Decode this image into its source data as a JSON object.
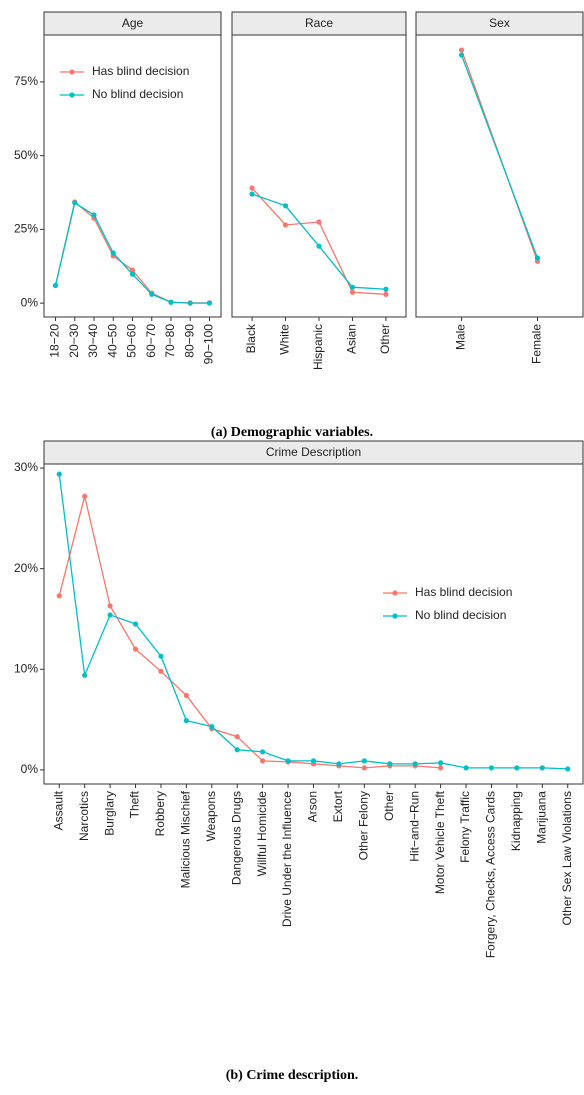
{
  "chart_data": [
    {
      "type": "line",
      "caption": "(a) Demographic variables.",
      "series": [
        {
          "name": "Has blind decision",
          "color": "#F8766D"
        },
        {
          "name": "No blind decision",
          "color": "#00BFC4"
        }
      ],
      "ylim": [
        -4.7,
        90.9
      ],
      "yticks": [
        {
          "value": 0,
          "label": "0%"
        },
        {
          "value": 25,
          "label": "25%"
        },
        {
          "value": 50,
          "label": "50%"
        },
        {
          "value": 75,
          "label": "75%"
        }
      ],
      "legend": "top-left",
      "facets": [
        {
          "title": "Age",
          "categories": [
            "18−20",
            "20−30",
            "30−40",
            "40−50",
            "50−60",
            "60−70",
            "70−80",
            "80−90",
            "90−100"
          ],
          "series": [
            {
              "values": [
                6,
                34.3,
                28.8,
                16,
                11.2,
                3.4,
                0.3,
                0.1,
                0.1
              ]
            },
            {
              "values": [
                6,
                34,
                29.9,
                17,
                9.8,
                3,
                0.3,
                0,
                0
              ]
            }
          ]
        },
        {
          "title": "Race",
          "categories": [
            "Black",
            "White",
            "Hispanic",
            "Asian",
            "Other"
          ],
          "series": [
            {
              "values": [
                39,
                26.5,
                27.5,
                3.7,
                3
              ]
            },
            {
              "values": [
                37,
                33,
                19.3,
                5.4,
                4.7
              ]
            }
          ]
        },
        {
          "title": "Sex",
          "categories": [
            "Male",
            "Female"
          ],
          "series": [
            {
              "values": [
                85.8,
                14.2
              ]
            },
            {
              "values": [
                84.1,
                15.3
              ]
            }
          ]
        }
      ]
    },
    {
      "type": "line",
      "title": "Crime Description",
      "caption": "(b) Crime description.",
      "categories": [
        "Assault",
        "Narcotics",
        "Burglary",
        "Theft",
        "Robbery",
        "Malicious Mischief",
        "Weapons",
        "Dangerous Drugs",
        "Willful Homicide",
        "Drive Under the Influence",
        "Arson",
        "Extort",
        "Other Felony",
        "Other",
        "Hit−and−Run",
        "Motor Vehicle Theft",
        "Felony Traffic",
        "Forgery, Checks, Access Cards",
        "Kidnapping",
        "Marijuana",
        "Other Sex Law Violations"
      ],
      "series": [
        {
          "name": "Has blind decision",
          "color": "#F8766D",
          "values": [
            17.3,
            27.2,
            16.3,
            12,
            9.8,
            7.4,
            4.1,
            3.3,
            0.9,
            0.8,
            0.6,
            0.4,
            0.2,
            0.4,
            0.4,
            0.2,
            null,
            null,
            null,
            null,
            null
          ]
        },
        {
          "name": "No blind decision",
          "color": "#00BFC4",
          "values": [
            29.4,
            9.4,
            15.4,
            14.5,
            11.3,
            4.9,
            4.3,
            2.0,
            1.8,
            0.9,
            0.9,
            0.6,
            0.9,
            0.6,
            0.6,
            0.7,
            0.2,
            0.2,
            0.2,
            0.2,
            0.1
          ]
        }
      ],
      "ylim": [
        -1.4,
        30.4
      ],
      "yticks": [
        {
          "value": 0,
          "label": "0%"
        },
        {
          "value": 10,
          "label": "10%"
        },
        {
          "value": 20,
          "label": "20%"
        },
        {
          "value": 30,
          "label": "30%"
        }
      ],
      "legend": "right"
    }
  ]
}
